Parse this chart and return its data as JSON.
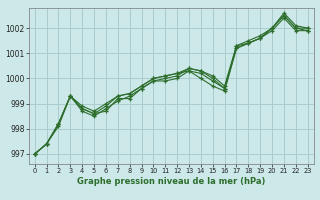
{
  "xlabel": "Graphe pression niveau de la mer (hPa)",
  "bg_color": "#cce8e8",
  "grid_color": "#aacccc",
  "line_color": "#2d6e2d",
  "xlim": [
    -0.5,
    23.5
  ],
  "ylim": [
    996.6,
    1002.8
  ],
  "yticks": [
    997,
    998,
    999,
    1000,
    1001,
    1002
  ],
  "xticks": [
    0,
    1,
    2,
    3,
    4,
    5,
    6,
    7,
    8,
    9,
    10,
    11,
    12,
    13,
    14,
    15,
    16,
    17,
    18,
    19,
    20,
    21,
    22,
    23
  ],
  "series": [
    [
      997.0,
      997.4,
      998.1,
      999.3,
      998.8,
      998.6,
      998.7,
      999.2,
      999.2,
      999.6,
      999.9,
      999.9,
      1000.0,
      1000.3,
      1000.2,
      999.9,
      999.6,
      1001.3,
      1001.4,
      1001.6,
      1002.0,
      1002.5,
      1002.0,
      1002.0
    ],
    [
      997.0,
      997.4,
      998.2,
      999.3,
      998.8,
      998.6,
      998.9,
      999.3,
      999.4,
      999.7,
      1000.0,
      1000.1,
      1000.2,
      1000.4,
      1000.3,
      1000.1,
      999.7,
      1001.3,
      1001.5,
      1001.7,
      1002.0,
      1002.6,
      1002.1,
      1002.0
    ],
    [
      997.0,
      997.4,
      998.2,
      999.3,
      998.7,
      998.5,
      998.8,
      999.1,
      999.3,
      999.6,
      999.9,
      1000.0,
      1000.1,
      1000.4,
      1000.3,
      1000.0,
      999.6,
      1001.2,
      1001.4,
      1001.6,
      1002.0,
      1002.5,
      1002.0,
      1001.9
    ],
    [
      997.0,
      997.4,
      998.2,
      999.3,
      998.9,
      998.7,
      999.0,
      999.3,
      999.4,
      999.7,
      1000.0,
      1000.1,
      1000.2,
      1000.3,
      1000.0,
      999.7,
      999.5,
      1001.2,
      1001.4,
      1001.6,
      1001.9,
      1002.4,
      1001.9,
      1001.9
    ]
  ]
}
